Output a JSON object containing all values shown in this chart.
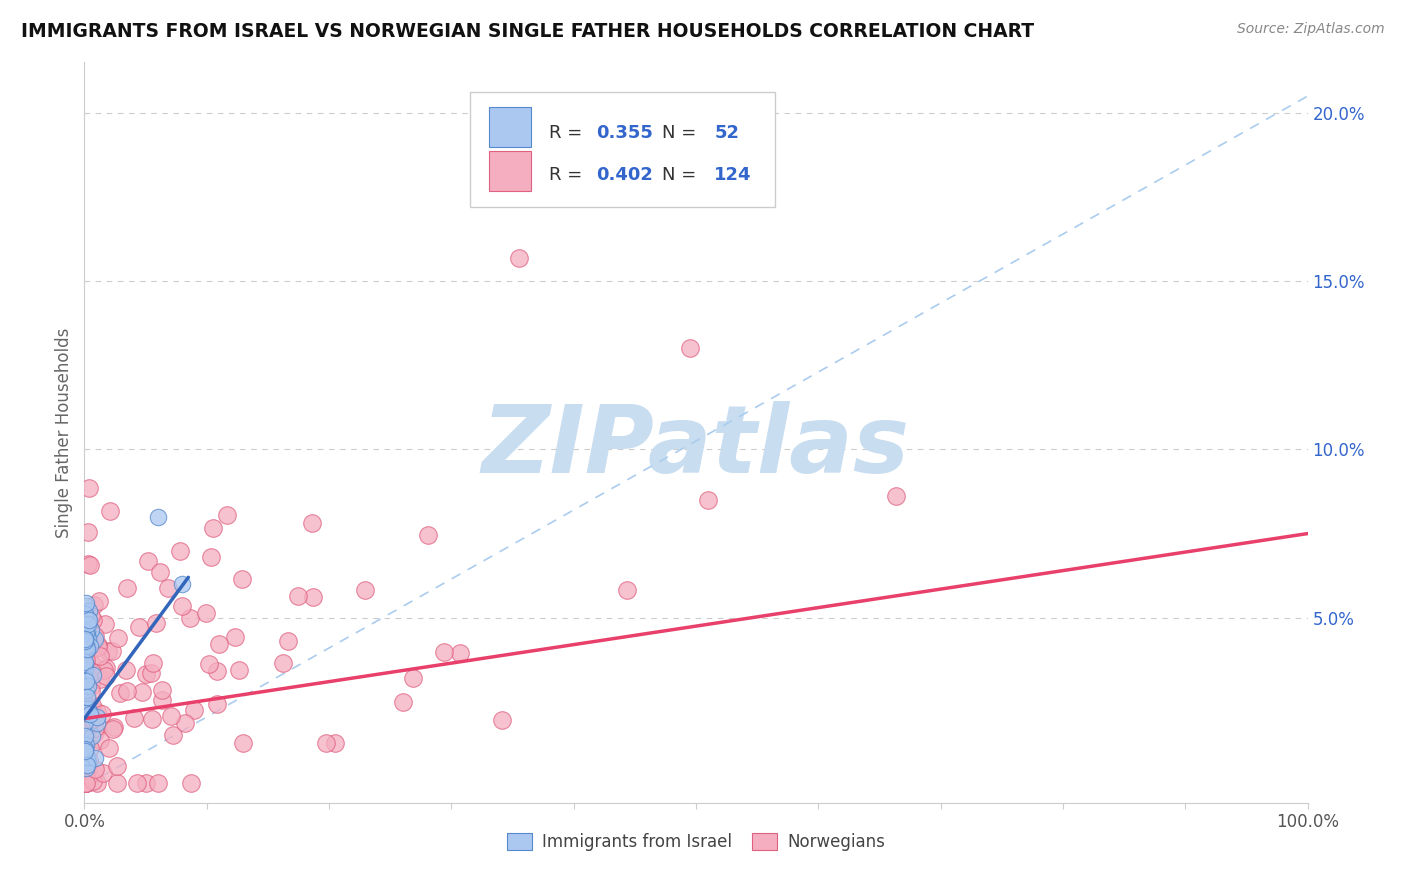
{
  "title": "IMMIGRANTS FROM ISRAEL VS NORWEGIAN SINGLE FATHER HOUSEHOLDS CORRELATION CHART",
  "source": "Source: ZipAtlas.com",
  "ylabel": "Single Father Households",
  "xlim": [
    0,
    1.0
  ],
  "ylim": [
    -0.005,
    0.215
  ],
  "yticks": [
    0.0,
    0.05,
    0.1,
    0.15,
    0.2
  ],
  "ytick_labels": [
    "",
    "5.0%",
    "10.0%",
    "15.0%",
    "20.0%"
  ],
  "xticks": [
    0.0,
    0.1,
    0.2,
    0.3,
    0.4,
    0.5,
    0.6,
    0.7,
    0.8,
    0.9,
    1.0
  ],
  "xtick_labels": [
    "0.0%",
    "",
    "",
    "",
    "",
    "",
    "",
    "",
    "",
    "",
    "100.0%"
  ],
  "israel_color": "#aac8f0",
  "israel_edge_color": "#5588cc",
  "norway_color": "#f4aec0",
  "norway_edge_color": "#e06080",
  "israel_line_color": "#3366bb",
  "norway_line_color": "#e8406a",
  "diag_line_color": "#aaccee",
  "R_israel": 0.355,
  "N_israel": 52,
  "R_norway": 0.402,
  "N_norway": 124,
  "watermark": "ZIPatlas",
  "watermark_color": "#c8ddf0",
  "background_color": "#ffffff",
  "grid_color": "#cccccc",
  "legend_text_color": "#333333",
  "legend_value_color": "#3366cc",
  "title_color": "#111111",
  "source_color": "#888888",
  "yaxis_label_color": "#666666",
  "ytick_color": "#3366cc",
  "xtick_color": "#555555"
}
